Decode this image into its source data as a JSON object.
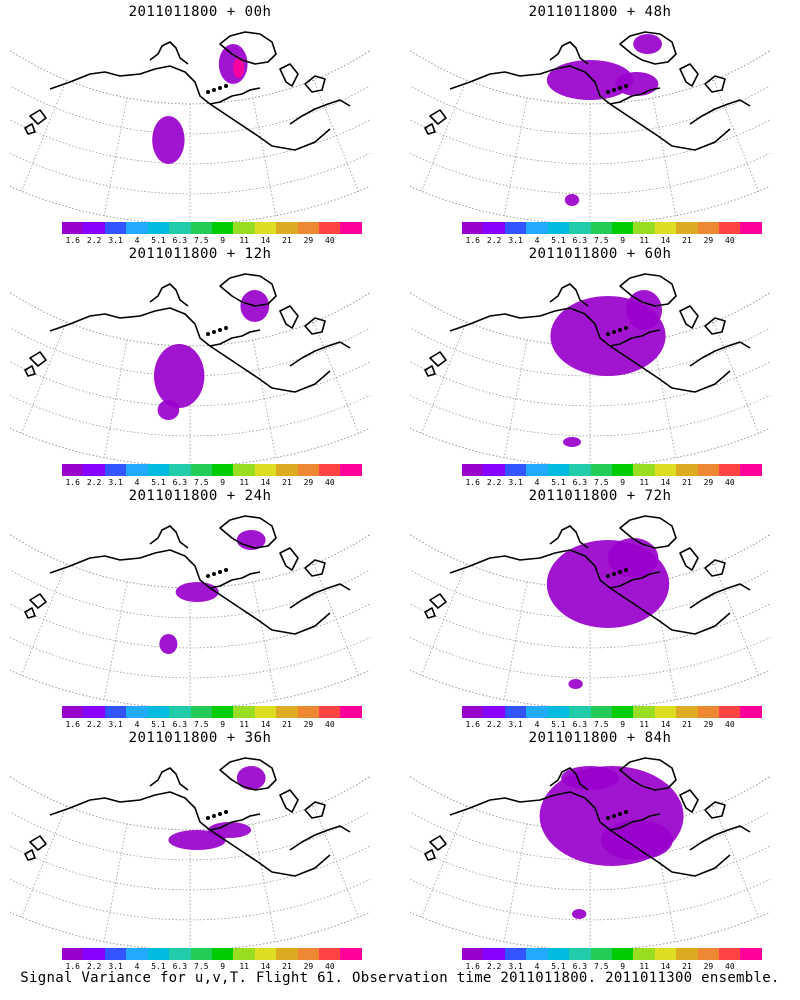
{
  "figure": {
    "caption": "Signal Variance for u,v,T. Flight 61. Observation time 2011011800. 2011011300 ensemble."
  },
  "colorbar": {
    "colors": [
      "#9900cc",
      "#8800ff",
      "#3355ff",
      "#22aaff",
      "#00bbdd",
      "#22ccaa",
      "#22cc55",
      "#00cc00",
      "#99dd22",
      "#dddd22",
      "#ddaa22",
      "#ee8833",
      "#ff4444",
      "#ff0099"
    ],
    "ticks": [
      "1.6",
      "2.2",
      "3.1",
      "4",
      "5.1",
      "6.3",
      "7.5",
      "9",
      "11",
      "14",
      "21",
      "29",
      "40"
    ]
  },
  "panels": [
    {
      "title": "2011011800 + 00h",
      "field": [
        [
          0.62,
          0.2,
          0.04,
          0.1,
          "#9900cc"
        ],
        [
          0.635,
          0.22,
          0.015,
          0.05,
          "#ff0099"
        ],
        [
          0.44,
          0.58,
          0.045,
          0.12,
          "#9900cc"
        ]
      ]
    },
    {
      "title": "2011011800 + 48h",
      "field": [
        [
          0.5,
          0.28,
          0.12,
          0.1,
          "#9900cc"
        ],
        [
          0.63,
          0.3,
          0.06,
          0.06,
          "#9900cc"
        ],
        [
          0.66,
          0.1,
          0.04,
          0.05,
          "#9900cc"
        ],
        [
          0.45,
          0.88,
          0.02,
          0.03,
          "#9900cc"
        ]
      ]
    },
    {
      "title": "2011011800 + 12h",
      "field": [
        [
          0.68,
          0.2,
          0.04,
          0.08,
          "#9900cc"
        ],
        [
          0.47,
          0.55,
          0.07,
          0.16,
          "#9900cc"
        ],
        [
          0.44,
          0.72,
          0.03,
          0.05,
          "#9900cc"
        ]
      ]
    },
    {
      "title": "2011011800 + 60h",
      "field": [
        [
          0.55,
          0.35,
          0.16,
          0.2,
          "#9900cc"
        ],
        [
          0.65,
          0.22,
          0.05,
          0.1,
          "#9900cc"
        ],
        [
          0.45,
          0.88,
          0.025,
          0.025,
          "#9900cc"
        ]
      ]
    },
    {
      "title": "2011011800 + 24h",
      "field": [
        [
          0.67,
          0.16,
          0.04,
          0.05,
          "#9900cc"
        ],
        [
          0.52,
          0.42,
          0.06,
          0.05,
          "#9900cc"
        ],
        [
          0.44,
          0.68,
          0.025,
          0.05,
          "#9900cc"
        ]
      ]
    },
    {
      "title": "2011011800 + 72h",
      "field": [
        [
          0.55,
          0.38,
          0.17,
          0.22,
          "#9900cc"
        ],
        [
          0.62,
          0.25,
          0.07,
          0.1,
          "#9900cc"
        ],
        [
          0.46,
          0.88,
          0.02,
          0.025,
          "#9900cc"
        ]
      ]
    },
    {
      "title": "2011011800 + 36h",
      "field": [
        [
          0.67,
          0.14,
          0.04,
          0.06,
          "#9900cc"
        ],
        [
          0.52,
          0.45,
          0.08,
          0.05,
          "#9900cc"
        ],
        [
          0.61,
          0.4,
          0.06,
          0.04,
          "#9900cc"
        ]
      ]
    },
    {
      "title": "2011011800 + 84h",
      "field": [
        [
          0.56,
          0.33,
          0.2,
          0.25,
          "#9900cc"
        ],
        [
          0.63,
          0.45,
          0.1,
          0.1,
          "#9900cc"
        ],
        [
          0.47,
          0.82,
          0.02,
          0.025,
          "#9900cc"
        ],
        [
          0.5,
          0.14,
          0.08,
          0.06,
          "#9900cc"
        ]
      ]
    }
  ]
}
